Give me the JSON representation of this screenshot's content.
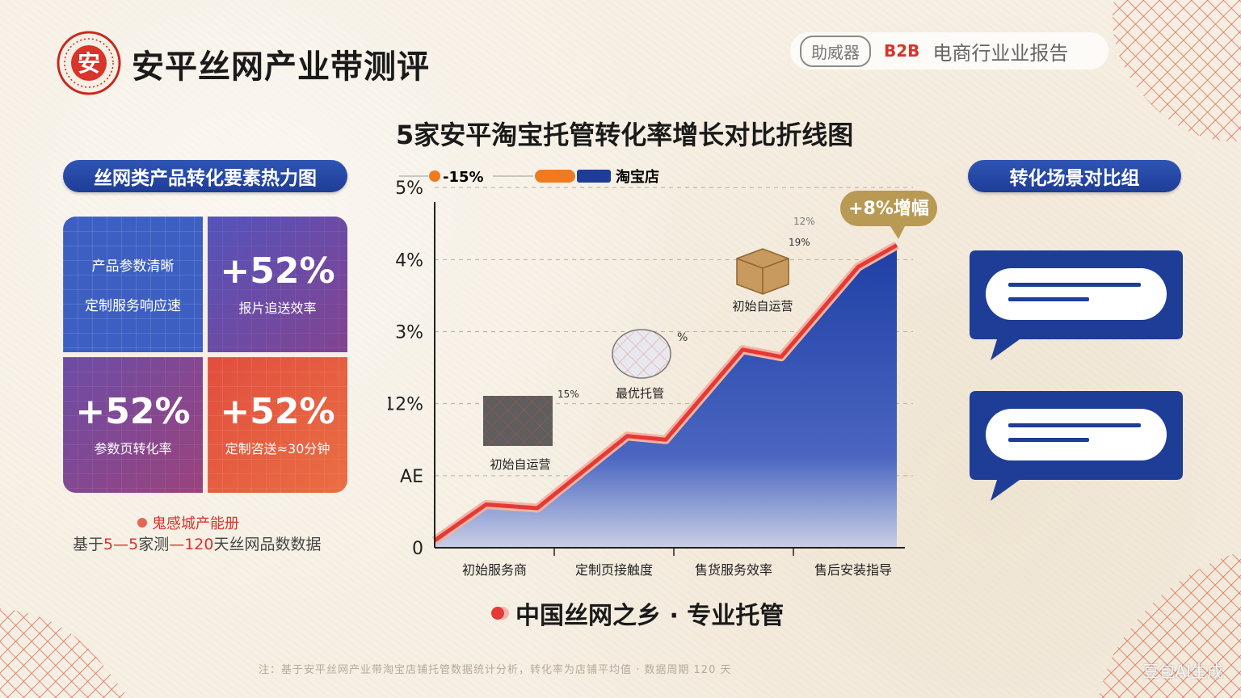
{
  "header": {
    "logo_char": "安",
    "brand_title": "安平丝网产业带测评",
    "badge_pill": "助威器",
    "badge_b2b": "B2B",
    "badge_text": "电商行业业报告"
  },
  "left_panel": {
    "title": "丝网类产品转化要素热力图",
    "cells": [
      {
        "line1": "产品参数清晰",
        "line2": "定制服务响应速"
      },
      {
        "big": "+52%",
        "sub": "报片追送效率"
      },
      {
        "big": "+52%",
        "sub": "参数页转化率"
      },
      {
        "big": "+52%",
        "sub": "定制咨送≈30分钟"
      }
    ],
    "source_label": "鬼感城产能册",
    "source_text_pre": "基于",
    "source_text_hl1": "5—5",
    "source_text_mid": "家测",
    "source_text_hl2": "—120",
    "source_text_post": "天丝网品数数据"
  },
  "right_panel": {
    "title": "转化场景对比组"
  },
  "chart": {
    "title": "5家安平淘宝托管转化率增长对比折线图",
    "legend": [
      {
        "label": "-15%",
        "color": "#f07a20"
      },
      {
        "label": "淘宝店",
        "color": "#1e3d96"
      }
    ],
    "peak_label": "+8%增幅",
    "annotations": [
      {
        "label": "初始自运营",
        "pct": "15%"
      },
      {
        "label": "最优托管",
        "pct": "%"
      },
      {
        "label": "初始自运营",
        "pct": "19%"
      },
      {
        "label": "",
        "pct": "12%"
      }
    ]
  },
  "chart_data": {
    "type": "area",
    "y_tick_labels": [
      "0",
      "AE",
      "12%",
      "3%",
      "4%",
      "5%"
    ],
    "categories": [
      "初始服务商",
      "定制页接触度",
      "售货服务效率",
      "售后安装指导"
    ],
    "x": [
      0,
      0.4,
      0.8,
      1.5,
      1.8,
      2.4,
      2.7,
      3.3,
      3.6
    ],
    "values": [
      0.1,
      0.6,
      0.55,
      1.55,
      1.5,
      2.75,
      2.65,
      3.9,
      4.2
    ],
    "ylim": [
      0,
      4.8
    ],
    "grid": true,
    "line_color": "#e53935",
    "fill_color": "#2a49b0"
  },
  "footer": {
    "tagline": "中国丝网之乡 · 专业托管",
    "fine_print": "注：基于安平丝网产业带淘宝店铺托管数据统计分析，转化率为店铺平均值 · 数据周期 120 天",
    "watermark": "豆包AI生成"
  }
}
